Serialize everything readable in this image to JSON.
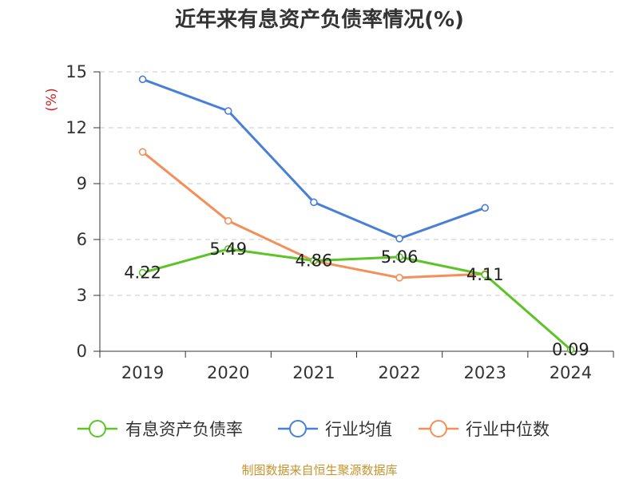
{
  "chart_data": {
    "type": "line",
    "title": "近年来有息资产负债率情况(%)",
    "ylabel": "(%)",
    "xlabel": "",
    "categories": [
      "2019",
      "2020",
      "2021",
      "2022",
      "2023",
      "2024"
    ],
    "yticks": [
      0,
      3,
      6,
      9,
      12,
      15
    ],
    "ylim": [
      0,
      15
    ],
    "grid": true,
    "legend_position": "bottom",
    "series": [
      {
        "name": "有息资产负债率",
        "color": "#5cc426",
        "values": [
          4.22,
          5.49,
          4.86,
          5.06,
          4.11,
          0.09
        ],
        "labels": [
          "4.22",
          "5.49",
          "4.86",
          "5.06",
          "4.11",
          "0.09"
        ]
      },
      {
        "name": "行业均值",
        "color": "#4a7fd6",
        "values": [
          14.6,
          12.9,
          8.0,
          6.05,
          7.7,
          null
        ]
      },
      {
        "name": "行业中位数",
        "color": "#f58f5a",
        "values": [
          10.7,
          7.0,
          4.85,
          3.95,
          4.15,
          null
        ]
      }
    ],
    "source": "制图数据来自恒生聚源数据库",
    "source_color": "#c8932e",
    "ylabel_color": "#cc2222"
  }
}
